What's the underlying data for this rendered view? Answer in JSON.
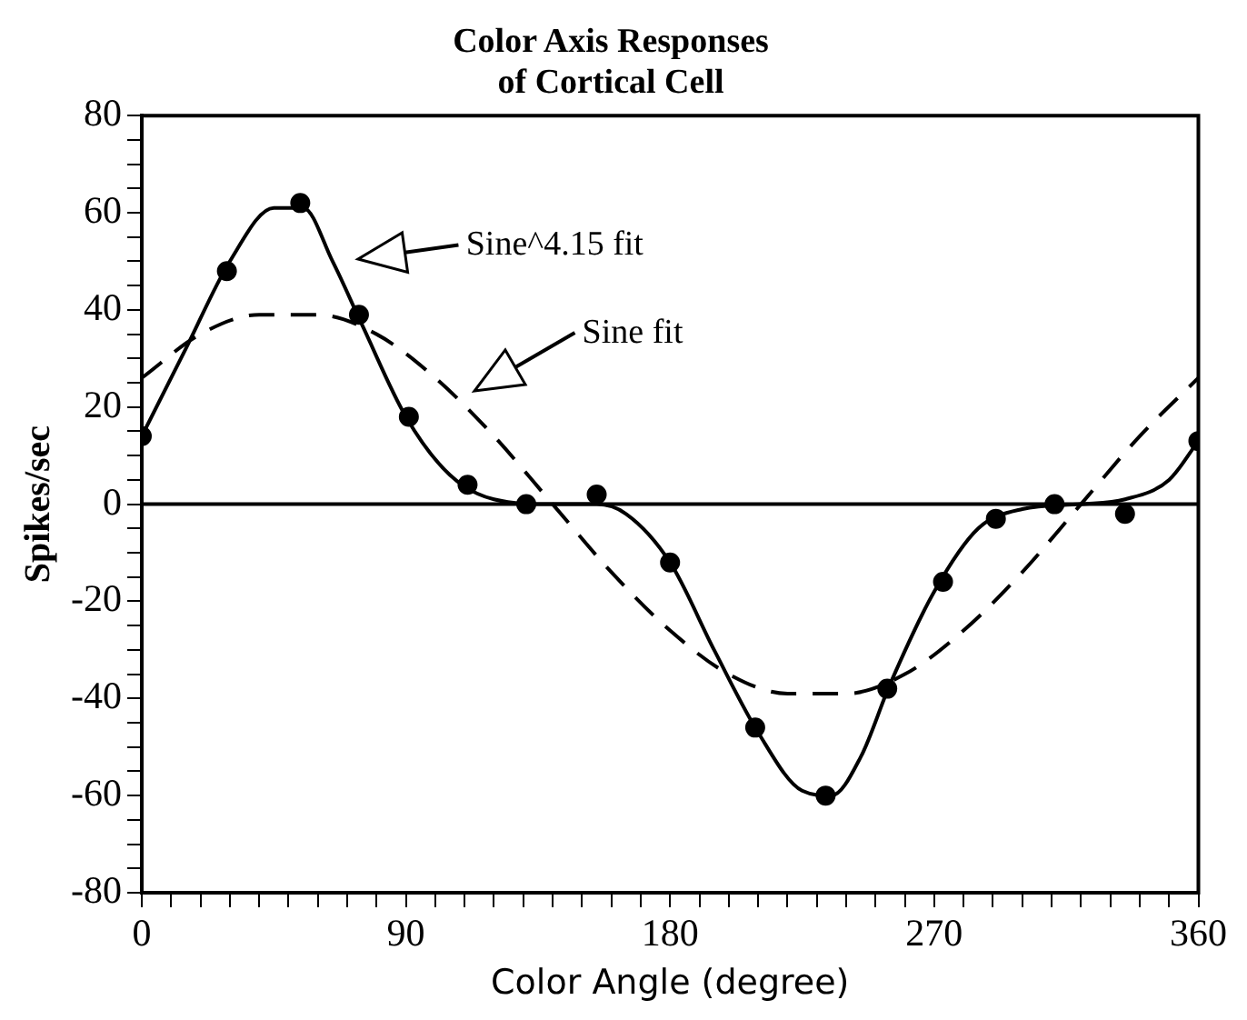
{
  "chart_data": {
    "type": "line",
    "title": "Color Axis Responses\nof Cortical Cell",
    "xlabel": "Color Angle (degree)",
    "ylabel": "Spikes/sec",
    "xlim": [
      0,
      360
    ],
    "ylim": [
      -80,
      80
    ],
    "xticks": [
      0,
      {
        "value": 10,
        "label": null
      },
      {
        "value": 20,
        "label": null
      },
      {
        "value": 30,
        "label": null
      },
      {
        "value": 40,
        "label": null
      },
      {
        "value": 50,
        "label": null
      },
      {
        "value": 60,
        "label": null
      },
      {
        "value": 70,
        "label": null
      },
      {
        "value": 80,
        "label": null
      },
      90,
      {
        "value": 100,
        "label": null
      },
      {
        "value": 110,
        "label": null
      },
      {
        "value": 120,
        "label": null
      },
      {
        "value": 130,
        "label": null
      },
      {
        "value": 140,
        "label": null
      },
      {
        "value": 150,
        "label": null
      },
      {
        "value": 160,
        "label": null
      },
      {
        "value": 170,
        "label": null
      },
      180,
      {
        "value": 190,
        "label": null
      },
      {
        "value": 200,
        "label": null
      },
      {
        "value": 210,
        "label": null
      },
      {
        "value": 220,
        "label": null
      },
      {
        "value": 230,
        "label": null
      },
      {
        "value": 240,
        "label": null
      },
      {
        "value": 250,
        "label": null
      },
      {
        "value": 260,
        "label": null
      },
      270,
      {
        "value": 280,
        "label": null
      },
      {
        "value": 290,
        "label": null
      },
      {
        "value": 300,
        "label": null
      },
      {
        "value": 310,
        "label": null
      },
      {
        "value": 320,
        "label": null
      },
      {
        "value": 330,
        "label": null
      },
      {
        "value": 340,
        "label": null
      },
      {
        "value": 350,
        "label": null
      },
      360
    ],
    "yticks": [
      -80,
      {
        "value": -75,
        "label": null
      },
      {
        "value": -70,
        "label": null
      },
      {
        "value": -65,
        "label": null
      },
      -60,
      {
        "value": -55,
        "label": null
      },
      {
        "value": -50,
        "label": null
      },
      {
        "value": -45,
        "label": null
      },
      -40,
      {
        "value": -35,
        "label": null
      },
      {
        "value": -30,
        "label": null
      },
      {
        "value": -25,
        "label": null
      },
      -20,
      {
        "value": -15,
        "label": null
      },
      {
        "value": -10,
        "label": null
      },
      {
        "value": -5,
        "label": null
      },
      0,
      {
        "value": 5,
        "label": null
      },
      {
        "value": 10,
        "label": null
      },
      {
        "value": 15,
        "label": null
      },
      20,
      {
        "value": 25,
        "label": null
      },
      {
        "value": 30,
        "label": null
      },
      {
        "value": 35,
        "label": null
      },
      40,
      {
        "value": 45,
        "label": null
      },
      {
        "value": 50,
        "label": null
      },
      {
        "value": 55,
        "label": null
      },
      60,
      {
        "value": 65,
        "label": null
      },
      {
        "value": 70,
        "label": null
      },
      {
        "value": 75,
        "label": null
      },
      80
    ],
    "grid": false,
    "legend": false,
    "ref_lines": [
      {
        "axis": "y",
        "value": 0,
        "color": "#000000",
        "line_style": "solid"
      }
    ],
    "annotations": [
      "Sine^4.15 fit",
      "Sine fit"
    ],
    "series": [
      {
        "type": "scatter",
        "color": "#000000",
        "marker": "circle",
        "x": [
          0,
          29,
          54,
          74,
          91,
          111,
          131,
          155,
          180,
          209,
          233,
          254,
          273,
          291,
          311,
          335,
          360
        ],
        "values": [
          14,
          48,
          62,
          39,
          18,
          4,
          0,
          2,
          -12,
          -46,
          -60,
          -38,
          -16,
          -3,
          0,
          -2,
          13
        ]
      },
      {
        "type": "line",
        "color": "#000000",
        "marker": "none",
        "line_style": "solid",
        "x": [
          0,
          15,
          30,
          45,
          55,
          65,
          75,
          90,
          105,
          120,
          140,
          155,
          165,
          180,
          195,
          210,
          225,
          235,
          245,
          255,
          270,
          285,
          300,
          320,
          335,
          350,
          360
        ],
        "values": [
          14,
          32,
          50,
          61,
          61,
          50,
          37,
          18,
          6,
          1,
          0,
          0,
          -2,
          -12,
          -30,
          -47,
          -59,
          -60,
          -52,
          -37,
          -18,
          -5,
          -1,
          0,
          1,
          5,
          13
        ]
      },
      {
        "type": "line",
        "color": "#000000",
        "marker": "none",
        "line_style": "dashed",
        "x": [
          0,
          20,
          40,
          60,
          80,
          100,
          120,
          140,
          160,
          180,
          200,
          220,
          240,
          260,
          280,
          300,
          320,
          340,
          360
        ],
        "values": [
          26,
          35,
          39,
          39,
          35,
          26,
          14,
          0,
          -14,
          -26,
          -35,
          -39,
          -39,
          -35,
          -26,
          -14,
          0,
          14,
          26
        ]
      }
    ]
  }
}
